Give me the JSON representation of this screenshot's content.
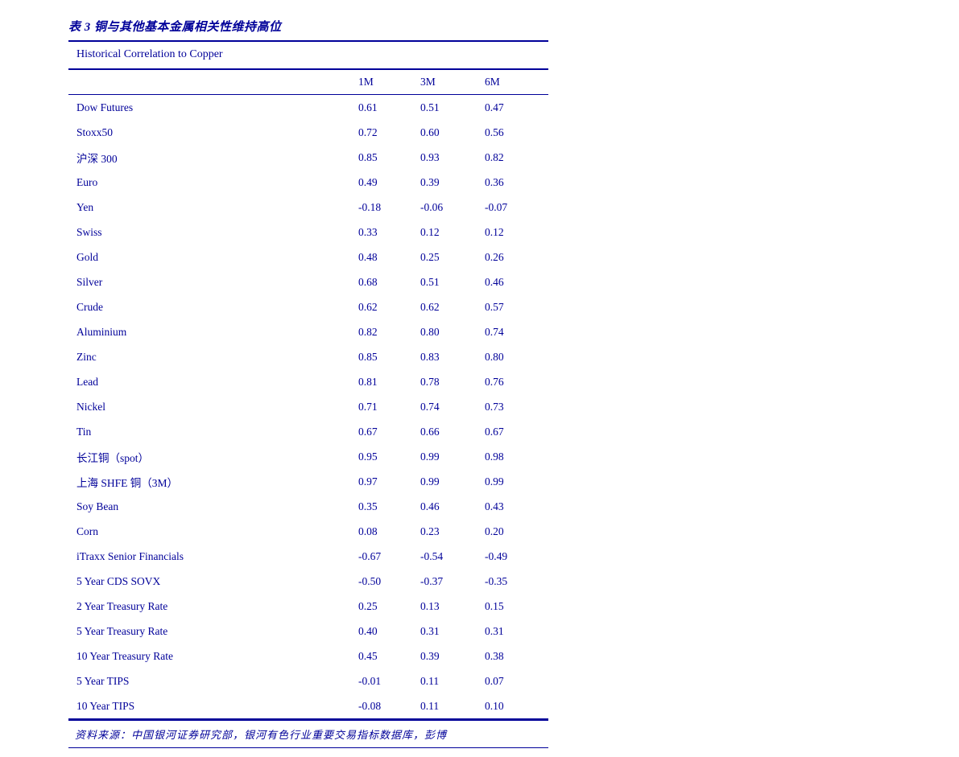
{
  "title": "表 3 铜与其他基本金属相关性维持高位",
  "table": {
    "header": "Historical Correlation to Copper",
    "columns": [
      "1M",
      "3M",
      "6M"
    ],
    "rows": [
      {
        "label": "Dow Futures",
        "values": [
          "0.61",
          "0.51",
          "0.47"
        ]
      },
      {
        "label": "Stoxx50",
        "values": [
          "0.72",
          "0.60",
          "0.56"
        ]
      },
      {
        "label": "沪深 300",
        "values": [
          "0.85",
          "0.93",
          "0.82"
        ]
      },
      {
        "label": "Euro",
        "values": [
          "0.49",
          "0.39",
          "0.36"
        ]
      },
      {
        "label": "Yen",
        "values": [
          "-0.18",
          "-0.06",
          "-0.07"
        ]
      },
      {
        "label": "Swiss",
        "values": [
          "0.33",
          "0.12",
          "0.12"
        ]
      },
      {
        "label": "Gold",
        "values": [
          "0.48",
          "0.25",
          "0.26"
        ]
      },
      {
        "label": "Silver",
        "values": [
          "0.68",
          "0.51",
          "0.46"
        ]
      },
      {
        "label": "Crude",
        "values": [
          "0.62",
          "0.62",
          "0.57"
        ]
      },
      {
        "label": "Aluminium",
        "values": [
          "0.82",
          "0.80",
          "0.74"
        ]
      },
      {
        "label": "Zinc",
        "values": [
          "0.85",
          "0.83",
          "0.80"
        ]
      },
      {
        "label": "Lead",
        "values": [
          "0.81",
          "0.78",
          "0.76"
        ]
      },
      {
        "label": "Nickel",
        "values": [
          "0.71",
          "0.74",
          "0.73"
        ]
      },
      {
        "label": "Tin",
        "values": [
          "0.67",
          "0.66",
          "0.67"
        ]
      },
      {
        "label": "长江铜（spot）",
        "values": [
          "0.95",
          "0.99",
          "0.98"
        ]
      },
      {
        "label": "上海 SHFE 铜（3M）",
        "values": [
          "0.97",
          "0.99",
          "0.99"
        ]
      },
      {
        "label": "Soy Bean",
        "values": [
          "0.35",
          "0.46",
          "0.43"
        ]
      },
      {
        "label": "Corn",
        "values": [
          "0.08",
          "0.23",
          "0.20"
        ]
      },
      {
        "label": "iTraxx Senior Financials",
        "values": [
          "-0.67",
          "-0.54",
          "-0.49"
        ]
      },
      {
        "label": "5 Year CDS SOVX",
        "values": [
          "-0.50",
          "-0.37",
          "-0.35"
        ]
      },
      {
        "label": "2 Year Treasury Rate",
        "values": [
          "0.25",
          "0.13",
          "0.15"
        ]
      },
      {
        "label": "5 Year Treasury Rate",
        "values": [
          "0.40",
          "0.31",
          "0.31"
        ]
      },
      {
        "label": "10 Year Treasury Rate",
        "values": [
          "0.45",
          "0.39",
          "0.38"
        ]
      },
      {
        "label": "5 Year TIPS",
        "values": [
          "-0.01",
          "0.11",
          "0.07"
        ]
      },
      {
        "label": "10 Year TIPS",
        "values": [
          "-0.08",
          "0.11",
          "0.10"
        ]
      }
    ]
  },
  "footer": "资料来源：中国银河证券研究部，银河有色行业重要交易指标数据库，彭博",
  "colors": {
    "text": "#000099",
    "rule": "#000099",
    "background": "#ffffff"
  }
}
